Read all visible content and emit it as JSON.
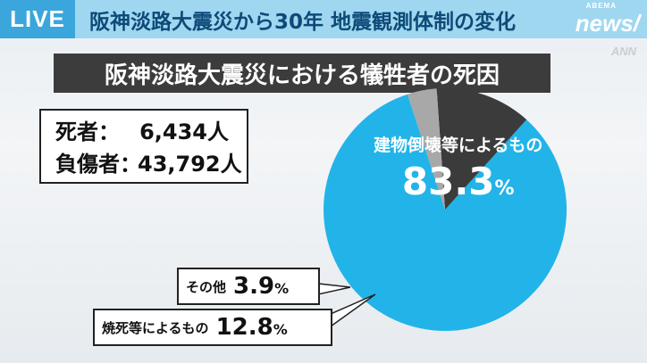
{
  "live_badge": "LIVE",
  "headline": "阪神淡路大震災から30年 地震観測体制の変化",
  "logo": {
    "small": "ABEMA",
    "big": "news/"
  },
  "watermark": "ANN",
  "stats": [
    {
      "label": "死者：",
      "value": "6,434人"
    },
    {
      "label": "負傷者：",
      "value": "43,792人"
    }
  ],
  "chart_data": {
    "type": "pie",
    "title": "阪神淡路大震災における犠牲者の死因",
    "slices": [
      {
        "label": "建物倒壊等によるもの",
        "value": 83.3,
        "display": "83.3",
        "unit": "%",
        "color": "#22b4e8"
      },
      {
        "label": "焼死等によるもの",
        "value": 12.8,
        "display": "12.8",
        "unit": "%",
        "color": "#3b3b3b"
      },
      {
        "label": "その他",
        "value": 3.9,
        "display": "3.9",
        "unit": "%",
        "color": "#a8a8a8"
      }
    ]
  }
}
